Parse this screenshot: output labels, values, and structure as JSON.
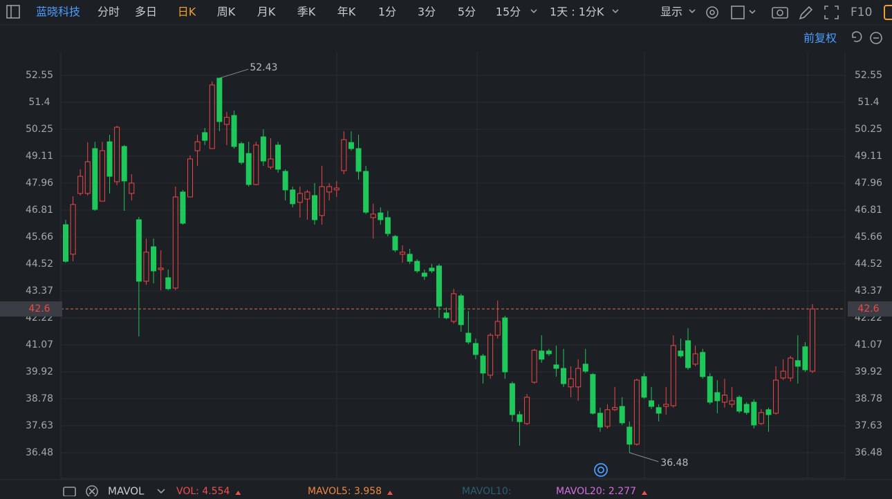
{
  "toolbar": {
    "stock": "蓝晓科技",
    "periods": [
      "分时",
      "多日",
      "日K",
      "周K",
      "月K",
      "季K",
      "年K",
      "1分",
      "3分",
      "5分",
      "15分"
    ],
    "active_period": 2,
    "interval": "1天 : 1分K",
    "display": "显示",
    "f10": "F10"
  },
  "chart_data": {
    "type": "candlestick",
    "adjust": "前复权",
    "open": [
      46.19,
      44.93,
      47.52,
      47.52,
      49.43,
      47.19,
      49.72,
      48.02,
      49.52,
      47.52,
      46.4,
      43.78,
      45.25,
      44.28,
      43.93,
      43.49,
      47.58,
      47.37,
      49.34,
      50.11,
      49.43,
      52.43,
      50.46,
      50.84,
      49.64,
      49.22,
      47.9,
      49.93,
      48.64,
      49.58,
      48.46,
      47.67,
      47.14,
      47.28,
      47.43,
      46.58,
      47.58,
      47.67,
      48.49,
      49.69,
      49.43,
      48.46,
      46.49,
      46.69,
      46.49,
      45.69,
      44.93,
      44.93,
      44.63,
      44.13,
      44.34,
      44.43,
      42.43,
      42.07,
      43.16,
      41.57,
      41.13,
      40.6,
      39.78,
      41.48,
      42.22,
      39.42,
      38.1,
      37.72,
      39.48,
      40.81,
      40.81,
      40.22,
      40.07,
      39.28,
      39.28,
      40.25,
      39.81,
      38.16,
      37.6,
      38.31,
      38.45,
      37.57,
      36.84,
      39.72,
      38.69,
      38.4,
      38.45,
      38.48,
      40.81,
      41.25,
      40.25,
      40.75,
      39.72,
      39.04,
      38.63,
      38.54,
      38.84,
      38.54,
      38.63,
      37.72,
      38.31,
      38.16,
      39.66,
      39.66,
      40.4,
      40.99,
      39.95
    ],
    "high": [
      46.4,
      47.4,
      48.55,
      49.7,
      49.72,
      49.72,
      50.02,
      50.4,
      49.58,
      48.34,
      46.52,
      45.6,
      45.6,
      45.1,
      44.28,
      47.81,
      47.67,
      49.14,
      50.02,
      50.31,
      52.29,
      52.43,
      50.99,
      51.05,
      49.72,
      49.72,
      49.72,
      50.25,
      49.87,
      49.72,
      48.55,
      47.81,
      47.81,
      47.67,
      47.96,
      48.69,
      47.96,
      48.05,
      50.17,
      50.17,
      50.02,
      48.69,
      47.08,
      46.93,
      46.78,
      45.75,
      45.31,
      45.16,
      44.72,
      44.28,
      44.52,
      44.52,
      42.66,
      43.46,
      43.25,
      42.51,
      41.34,
      40.69,
      41.57,
      42.96,
      42.31,
      39.51,
      38.25,
      38.98,
      40.9,
      41.48,
      40.9,
      41.04,
      40.9,
      40.16,
      40.46,
      40.9,
      39.87,
      38.4,
      38.54,
      39.28,
      38.84,
      37.81,
      39.63,
      39.87,
      39.28,
      38.54,
      39.28,
      41.48,
      41.34,
      41.78,
      41.04,
      40.9,
      39.87,
      39.57,
      39.63,
      39.28,
      38.92,
      38.63,
      38.75,
      38.34,
      38.4,
      40.16,
      40.46,
      40.6,
      41.48,
      41.19,
      42.81
    ],
    "low": [
      44.57,
      44.63,
      47.43,
      47.43,
      46.78,
      47.19,
      47.52,
      47.87,
      46.78,
      47.22,
      41.43,
      43.63,
      43.69,
      43.4,
      43.4,
      43.4,
      46.19,
      47.37,
      48.69,
      49.58,
      49.43,
      50.17,
      49.58,
      49.43,
      48.75,
      47.81,
      47.87,
      48.69,
      48.55,
      48.4,
      47.22,
      46.93,
      46.49,
      46.4,
      46.19,
      46.19,
      47.22,
      47.37,
      48.34,
      49.34,
      48.11,
      46.64,
      45.6,
      46.19,
      45.69,
      45.02,
      44.57,
      44.52,
      44.13,
      43.84,
      44.13,
      42.22,
      42.16,
      41.98,
      41.63,
      41.1,
      40.46,
      39.42,
      39.63,
      41.34,
      39.63,
      37.81,
      36.78,
      37.66,
      39.42,
      40.31,
      40.6,
      39.72,
      39.28,
      38.84,
      38.69,
      39.87,
      38.1,
      37.37,
      37.51,
      38.25,
      37.66,
      36.48,
      36.78,
      38.78,
      38.34,
      37.81,
      38.1,
      38.4,
      40.52,
      40.01,
      40.16,
      39.63,
      38.54,
      38.16,
      38.4,
      38.4,
      38.16,
      38.1,
      37.51,
      37.66,
      37.37,
      38.1,
      39.57,
      39.51,
      39.42,
      39.92,
      39.87
    ],
    "close": [
      44.63,
      47.05,
      48.25,
      48.87,
      46.84,
      49.34,
      48.25,
      50.34,
      48.05,
      47.96,
      43.78,
      45.02,
      44.22,
      44.34,
      43.46,
      47.37,
      46.25,
      48.99,
      49.72,
      49.78,
      52.14,
      50.58,
      50.76,
      49.52,
      48.84,
      47.9,
      49.58,
      48.9,
      48.99,
      48.55,
      47.67,
      47.08,
      47.52,
      47.58,
      46.4,
      47.81,
      47.81,
      47.75,
      49.81,
      49.43,
      48.46,
      46.72,
      46.64,
      46.4,
      45.81,
      45.11,
      45.02,
      44.63,
      44.22,
      43.99,
      44.22,
      42.72,
      42.22,
      43.25,
      41.93,
      41.19,
      40.66,
      39.87,
      41.48,
      42.07,
      39.92,
      38.1,
      37.8,
      38.84,
      40.84,
      40.46,
      40.69,
      40.07,
      39.42,
      39.63,
      40.07,
      39.95,
      38.16,
      37.57,
      38.31,
      38.4,
      37.75,
      36.84,
      39.57,
      38.84,
      38.45,
      38.16,
      38.54,
      41.04,
      40.6,
      40.1,
      40.69,
      39.72,
      38.63,
      38.69,
      38.93,
      38.69,
      38.25,
      38.19,
      37.66,
      38.19,
      38.1,
      39.57,
      39.95,
      40.51,
      40.16,
      40.01,
      42.6
    ],
    "up_color": "#f04848",
    "down_color": "#1fc85a",
    "ylim": [
      35.39,
      53.55
    ],
    "yticks": [
      52.55,
      51.4,
      50.25,
      49.11,
      47.96,
      46.81,
      45.66,
      44.52,
      43.37,
      42.22,
      41.07,
      39.92,
      38.78,
      37.63,
      36.48
    ],
    "last_price": 42.6,
    "max_label": 52.43,
    "min_label": 36.48,
    "indicator": "MAVOL",
    "indicators": [
      {
        "text": "VOL: 4.554",
        "color": "#f05050"
      },
      {
        "text": "MAVOL5: 3.958",
        "color": "#f0883e"
      },
      {
        "text": "MAVOL10:",
        "color": "#2c5f73"
      },
      {
        "text": "MAVOL20: 2.277",
        "color": "#d66ee0"
      }
    ]
  }
}
